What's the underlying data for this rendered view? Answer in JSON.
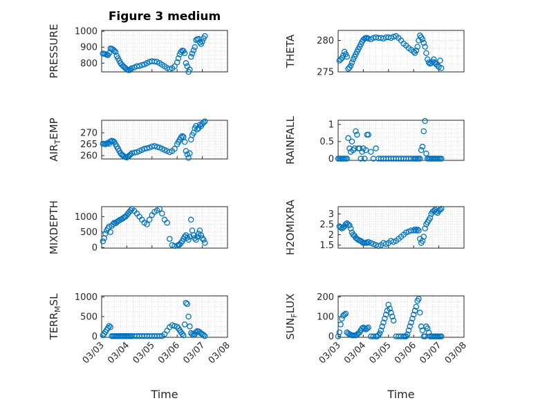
{
  "figure": {
    "title": "Figure 3 medium"
  },
  "colors": {
    "series": "#0072BD",
    "axis": "#262626",
    "grid": "#d9d9d9"
  },
  "chart_data": [
    {
      "type": "scatter",
      "id": "pressure",
      "ylabel": {
        "main": "PRESSURE",
        "sub": "",
        "rest": ""
      },
      "xlabel": "",
      "title": "Figure 3 medium",
      "xlim": [
        "03/03",
        "03/08"
      ],
      "xticks": [
        "03/03",
        "03/04",
        "03/05",
        "03/06",
        "03/07",
        "03/08"
      ],
      "ylim": [
        745,
        1005
      ],
      "yticks": [
        800,
        900,
        1000
      ],
      "grid": true,
      "x": [
        3.05,
        3.1,
        3.15,
        3.2,
        3.25,
        3.3,
        3.35,
        3.4,
        3.45,
        3.5,
        3.55,
        3.6,
        3.65,
        3.7,
        3.75,
        3.8,
        3.85,
        3.9,
        3.95,
        4.0,
        4.05,
        4.1,
        4.15,
        4.2,
        4.3,
        4.4,
        4.5,
        4.6,
        4.7,
        4.8,
        4.9,
        5.0,
        5.1,
        5.2,
        5.3,
        5.4,
        5.5,
        5.6,
        5.7,
        5.8,
        5.9,
        6.0,
        6.05,
        6.1,
        6.15,
        6.2,
        6.25,
        6.3,
        6.35,
        6.4,
        6.45,
        6.5,
        6.55,
        6.6,
        6.65,
        6.7,
        6.75,
        6.8,
        6.85,
        6.9,
        6.95,
        7.0,
        7.05,
        7.1
      ],
      "y": [
        860,
        858,
        856,
        853,
        850,
        862,
        892,
        890,
        885,
        878,
        870,
        845,
        830,
        815,
        800,
        790,
        782,
        775,
        768,
        760,
        757,
        756,
        762,
        768,
        773,
        780,
        782,
        788,
        792,
        800,
        808,
        812,
        810,
        808,
        800,
        790,
        780,
        770,
        762,
        768,
        780,
        805,
        830,
        855,
        870,
        878,
        876,
        862,
        800,
        780,
        745,
        760,
        840,
        860,
        880,
        900,
        945,
        950,
        952,
        930,
        920,
        935,
        955,
        970
      ]
    },
    {
      "type": "scatter",
      "id": "theta",
      "ylabel": {
        "main": "THETA",
        "sub": "",
        "rest": ""
      },
      "xlabel": "",
      "xlim": [
        "03/03",
        "03/08"
      ],
      "xticks": [
        "03/03",
        "03/04",
        "03/05",
        "03/06",
        "03/07",
        "03/08"
      ],
      "ylim": [
        275,
        281.6
      ],
      "yticks": [
        275,
        280
      ],
      "grid": true,
      "x": [
        3.05,
        3.1,
        3.15,
        3.2,
        3.25,
        3.3,
        3.35,
        3.4,
        3.45,
        3.5,
        3.55,
        3.6,
        3.65,
        3.7,
        3.75,
        3.8,
        3.85,
        3.9,
        3.95,
        4.0,
        4.05,
        4.1,
        4.15,
        4.2,
        4.3,
        4.4,
        4.5,
        4.6,
        4.7,
        4.8,
        4.9,
        5.0,
        5.1,
        5.2,
        5.3,
        5.4,
        5.5,
        5.6,
        5.7,
        5.8,
        5.9,
        6.0,
        6.05,
        6.1,
        6.15,
        6.2,
        6.25,
        6.3,
        6.35,
        6.4,
        6.45,
        6.5,
        6.55,
        6.6,
        6.65,
        6.7,
        6.75,
        6.8,
        6.85,
        6.9,
        6.95,
        7.0,
        7.05,
        7.1
      ],
      "y": [
        276.8,
        277.0,
        277.2,
        277.6,
        278.2,
        277.8,
        277.4,
        275.5,
        275.7,
        276.0,
        276.5,
        277.0,
        277.4,
        277.8,
        278.2,
        278.6,
        279.0,
        279.4,
        279.8,
        280.1,
        280.3,
        280.4,
        280.4,
        280.3,
        280.2,
        280.4,
        280.5,
        280.4,
        280.4,
        280.3,
        280.5,
        280.5,
        280.4,
        280.6,
        280.7,
        280.4,
        280.0,
        279.5,
        279.2,
        278.8,
        278.5,
        278.2,
        278.0,
        278.4,
        279.0,
        280.0,
        280.8,
        280.5,
        280.2,
        279.6,
        279.0,
        278.0,
        277.0,
        276.5,
        276.3,
        276.4,
        276.6,
        277.0,
        276.5,
        276.2,
        276.0,
        275.8,
        276.8,
        275.6
      ]
    },
    {
      "type": "scatter",
      "id": "airtemp",
      "ylabel": {
        "main": "AIR",
        "sub": "T",
        "rest": "EMP"
      },
      "xlabel": "",
      "xlim": [
        "03/03",
        "03/08"
      ],
      "xticks": [
        "03/03",
        "03/04",
        "03/05",
        "03/06",
        "03/07",
        "03/08"
      ],
      "ylim": [
        258.5,
        275.5
      ],
      "yticks": [
        260,
        265,
        270
      ],
      "grid": true,
      "x": [
        3.05,
        3.1,
        3.15,
        3.2,
        3.25,
        3.3,
        3.35,
        3.4,
        3.45,
        3.5,
        3.55,
        3.6,
        3.65,
        3.7,
        3.75,
        3.8,
        3.85,
        3.9,
        3.95,
        4.0,
        4.05,
        4.1,
        4.15,
        4.2,
        4.3,
        4.4,
        4.5,
        4.6,
        4.7,
        4.8,
        4.9,
        5.0,
        5.1,
        5.2,
        5.3,
        5.4,
        5.5,
        5.6,
        5.7,
        5.8,
        5.9,
        6.0,
        6.05,
        6.1,
        6.15,
        6.2,
        6.25,
        6.3,
        6.35,
        6.4,
        6.45,
        6.5,
        6.55,
        6.6,
        6.65,
        6.7,
        6.75,
        6.8,
        6.85,
        6.9,
        6.95,
        7.0,
        7.05,
        7.1
      ],
      "y": [
        265.2,
        265.1,
        265.0,
        265.3,
        265.6,
        265.2,
        266.2,
        266.5,
        266.3,
        266.0,
        265.0,
        264.0,
        263.0,
        262.0,
        261.0,
        260.4,
        260.0,
        259.6,
        259.3,
        259.2,
        259.5,
        260.0,
        260.5,
        261.0,
        261.3,
        261.5,
        262.0,
        262.5,
        263.0,
        263.2,
        263.5,
        264.0,
        264.2,
        263.8,
        263.5,
        263.0,
        262.5,
        262.0,
        261.5,
        262.0,
        263.0,
        265.0,
        266.0,
        267.0,
        268.0,
        268.5,
        268.2,
        266.0,
        262.0,
        260.5,
        259.0,
        261.0,
        267.0,
        269.0,
        270.0,
        272.0,
        273.0,
        271.5,
        272.0,
        273.5,
        273.0,
        274.0,
        274.5,
        275.0
      ]
    },
    {
      "type": "scatter",
      "id": "rainfall",
      "ylabel": {
        "main": "RAINFALL",
        "sub": "",
        "rest": ""
      },
      "xlabel": "",
      "xlim": [
        "03/03",
        "03/08"
      ],
      "xticks": [
        "03/03",
        "03/04",
        "03/05",
        "03/06",
        "03/07",
        "03/08"
      ],
      "ylim": [
        -0.05,
        1.12
      ],
      "yticks": [
        0,
        0.5,
        1
      ],
      "grid": true,
      "x": [
        3.0,
        3.05,
        3.1,
        3.15,
        3.2,
        3.25,
        3.3,
        3.35,
        3.4,
        3.45,
        3.5,
        3.55,
        3.6,
        3.65,
        3.7,
        3.75,
        3.8,
        3.85,
        3.9,
        3.95,
        4.0,
        4.05,
        4.1,
        4.15,
        4.2,
        4.3,
        4.4,
        4.5,
        4.6,
        4.7,
        4.8,
        4.9,
        5.0,
        5.1,
        5.2,
        5.3,
        5.4,
        5.5,
        5.6,
        5.7,
        5.8,
        5.9,
        6.0,
        6.05,
        6.1,
        6.15,
        6.2,
        6.25,
        6.3,
        6.35,
        6.4,
        6.45,
        6.5,
        6.55,
        6.6,
        6.65,
        6.7,
        6.75,
        6.8,
        6.85,
        6.9,
        6.95,
        7.0,
        7.05,
        7.1
      ],
      "y": [
        0,
        0,
        0,
        0,
        0,
        0,
        0,
        0,
        0.6,
        0.3,
        0.2,
        0.5,
        0.25,
        0.3,
        0.8,
        0.7,
        0.3,
        0.3,
        0,
        0.2,
        0.3,
        0,
        0.25,
        0.7,
        0.7,
        0.2,
        0,
        0.3,
        0,
        0,
        0,
        0,
        0,
        0,
        0,
        0,
        0,
        0,
        0,
        0,
        0,
        0,
        0,
        0,
        0,
        0,
        0,
        0,
        0.25,
        0.35,
        0.8,
        1.1,
        0.15,
        0,
        0,
        0,
        0,
        0,
        0,
        0,
        0,
        0,
        0,
        0,
        0
      ]
    },
    {
      "type": "scatter",
      "id": "mixdepth",
      "ylabel": {
        "main": "MIXDEPTH",
        "sub": "",
        "rest": ""
      },
      "xlabel": "",
      "xlim": [
        "03/03",
        "03/08"
      ],
      "xticks": [
        "03/03",
        "03/04",
        "03/05",
        "03/06",
        "03/07",
        "03/08"
      ],
      "ylim": [
        -20,
        1320
      ],
      "yticks": [
        0,
        500,
        1000
      ],
      "grid": true,
      "x": [
        3.05,
        3.1,
        3.15,
        3.2,
        3.25,
        3.3,
        3.35,
        3.4,
        3.45,
        3.5,
        3.55,
        3.6,
        3.65,
        3.7,
        3.75,
        3.8,
        3.85,
        3.9,
        3.95,
        4.0,
        4.05,
        4.1,
        4.15,
        4.2,
        4.3,
        4.4,
        4.5,
        4.6,
        4.7,
        4.8,
        4.9,
        5.0,
        5.1,
        5.2,
        5.3,
        5.4,
        5.5,
        5.6,
        5.7,
        5.8,
        5.9,
        6.0,
        6.05,
        6.1,
        6.15,
        6.2,
        6.25,
        6.3,
        6.35,
        6.4,
        6.45,
        6.5,
        6.55,
        6.6,
        6.65,
        6.7,
        6.75,
        6.8,
        6.85,
        6.9,
        6.95,
        7.0,
        7.05,
        7.1
      ],
      "y": [
        200,
        300,
        450,
        550,
        620,
        680,
        500,
        700,
        760,
        800,
        780,
        820,
        850,
        880,
        900,
        920,
        950,
        980,
        1000,
        1050,
        1100,
        1150,
        1200,
        1250,
        1180,
        1100,
        1000,
        900,
        800,
        750,
        900,
        1050,
        1150,
        1200,
        1250,
        1100,
        900,
        800,
        280,
        80,
        50,
        60,
        80,
        100,
        150,
        200,
        280,
        350,
        400,
        320,
        250,
        350,
        900,
        550,
        400,
        300,
        250,
        350,
        450,
        550,
        400,
        300,
        250,
        150
      ]
    },
    {
      "type": "scatter",
      "id": "h2omixra",
      "ylabel": {
        "main": "H2OMIXRA",
        "sub": "",
        "rest": ""
      },
      "xlabel": "",
      "xlim": [
        "03/03",
        "03/08"
      ],
      "xticks": [
        "03/03",
        "03/04",
        "03/05",
        "03/06",
        "03/07",
        "03/08"
      ],
      "ylim": [
        1.35,
        3.35
      ],
      "yticks": [
        1.5,
        2,
        2.5,
        3
      ],
      "grid": true,
      "x": [
        3.05,
        3.1,
        3.15,
        3.2,
        3.25,
        3.3,
        3.35,
        3.4,
        3.45,
        3.5,
        3.55,
        3.6,
        3.65,
        3.7,
        3.75,
        3.8,
        3.85,
        3.9,
        3.95,
        4.0,
        4.05,
        4.1,
        4.15,
        4.2,
        4.3,
        4.4,
        4.5,
        4.6,
        4.7,
        4.8,
        4.9,
        5.0,
        5.1,
        5.2,
        5.3,
        5.4,
        5.5,
        5.6,
        5.7,
        5.8,
        5.9,
        6.0,
        6.05,
        6.1,
        6.15,
        6.2,
        6.25,
        6.3,
        6.35,
        6.4,
        6.45,
        6.5,
        6.55,
        6.6,
        6.65,
        6.7,
        6.75,
        6.8,
        6.85,
        6.9,
        6.95,
        7.0,
        7.05,
        7.1
      ],
      "y": [
        2.4,
        2.35,
        2.3,
        2.35,
        2.4,
        2.5,
        2.55,
        2.5,
        2.45,
        2.3,
        2.1,
        2.0,
        1.95,
        1.85,
        1.8,
        1.75,
        1.72,
        1.7,
        1.65,
        1.6,
        1.6,
        1.62,
        1.6,
        1.65,
        1.6,
        1.55,
        1.5,
        1.45,
        1.5,
        1.6,
        1.55,
        1.6,
        1.7,
        1.65,
        1.7,
        1.8,
        1.9,
        2.0,
        2.1,
        2.15,
        2.2,
        2.2,
        2.25,
        2.2,
        2.25,
        2.2,
        1.8,
        1.6,
        1.7,
        1.9,
        2.3,
        2.5,
        2.6,
        2.7,
        2.8,
        3.0,
        3.1,
        3.15,
        3.2,
        3.1,
        3.05,
        3.15,
        3.2,
        3.25
      ]
    },
    {
      "type": "scatter",
      "id": "terrmsl",
      "ylabel": {
        "main": "TERR",
        "sub": "M",
        "rest": "SL"
      },
      "xlabel": "Time",
      "xlim": [
        "03/03",
        "03/08"
      ],
      "xticks": [
        "03/03",
        "03/04",
        "03/05",
        "03/06",
        "03/07",
        "03/08"
      ],
      "ylim": [
        -30,
        1030
      ],
      "yticks": [
        0,
        500,
        1000
      ],
      "grid": true,
      "x": [
        3.05,
        3.1,
        3.15,
        3.2,
        3.25,
        3.3,
        3.35,
        3.4,
        3.45,
        3.5,
        3.55,
        3.6,
        3.65,
        3.7,
        3.75,
        3.8,
        3.85,
        3.9,
        3.95,
        4.0,
        4.05,
        4.1,
        4.15,
        4.2,
        4.3,
        4.4,
        4.5,
        4.6,
        4.7,
        4.8,
        4.9,
        5.0,
        5.1,
        5.2,
        5.3,
        5.4,
        5.5,
        5.6,
        5.7,
        5.8,
        5.9,
        6.0,
        6.05,
        6.1,
        6.15,
        6.2,
        6.25,
        6.3,
        6.35,
        6.4,
        6.45,
        6.5,
        6.55,
        6.6,
        6.65,
        6.7,
        6.75,
        6.8,
        6.85,
        6.9,
        6.95,
        7.0,
        7.05,
        7.1
      ],
      "y": [
        20,
        60,
        110,
        160,
        210,
        260,
        230,
        0,
        0,
        0,
        0,
        0,
        0,
        0,
        0,
        0,
        0,
        0,
        0,
        0,
        0,
        0,
        0,
        0,
        0,
        0,
        0,
        0,
        0,
        0,
        0,
        0,
        0,
        0,
        0,
        0,
        50,
        140,
        230,
        280,
        260,
        240,
        200,
        150,
        100,
        60,
        20,
        300,
        850,
        820,
        500,
        250,
        80,
        50,
        30,
        50,
        100,
        130,
        120,
        100,
        70,
        50,
        30,
        0
      ]
    },
    {
      "type": "scatter",
      "id": "sunflux",
      "ylabel": {
        "main": "SUN",
        "sub": "F",
        "rest": "LUX"
      },
      "xlabel": "Time",
      "xlim": [
        "03/03",
        "03/08"
      ],
      "xticks": [
        "03/03",
        "03/04",
        "03/05",
        "03/06",
        "03/07",
        "03/08"
      ],
      "ylim": [
        -5,
        205
      ],
      "yticks": [
        0,
        100,
        200
      ],
      "grid": true,
      "x": [
        3.0,
        3.05,
        3.1,
        3.15,
        3.2,
        3.25,
        3.3,
        3.35,
        3.4,
        3.45,
        3.5,
        3.55,
        3.6,
        3.65,
        3.7,
        3.75,
        3.8,
        3.85,
        3.9,
        3.95,
        4.0,
        4.05,
        4.1,
        4.15,
        4.2,
        4.3,
        4.4,
        4.5,
        4.55,
        4.6,
        4.65,
        4.7,
        4.75,
        4.8,
        4.85,
        4.9,
        4.95,
        5.0,
        5.05,
        5.1,
        5.15,
        5.2,
        5.3,
        5.4,
        5.5,
        5.6,
        5.65,
        5.7,
        5.75,
        5.8,
        5.85,
        5.9,
        5.95,
        6.0,
        6.05,
        6.1,
        6.15,
        6.2,
        6.25,
        6.3,
        6.35,
        6.4,
        6.45,
        6.5,
        6.55,
        6.6,
        6.65,
        6.7,
        6.75,
        6.8,
        6.85,
        6.9,
        6.95,
        7.0,
        7.05,
        7.1
      ],
      "y": [
        0,
        20,
        60,
        90,
        105,
        110,
        115,
        20,
        15,
        10,
        8,
        5,
        5,
        5,
        5,
        8,
        15,
        20,
        30,
        40,
        45,
        40,
        35,
        40,
        45,
        0,
        0,
        0,
        0,
        5,
        15,
        30,
        50,
        70,
        90,
        110,
        130,
        160,
        140,
        120,
        100,
        80,
        0,
        0,
        0,
        0,
        0,
        0,
        10,
        30,
        50,
        70,
        90,
        110,
        130,
        150,
        180,
        190,
        120,
        50,
        30,
        0,
        0,
        50,
        40,
        20,
        0,
        0,
        0,
        0,
        0,
        0,
        0,
        0,
        0,
        0
      ]
    }
  ]
}
